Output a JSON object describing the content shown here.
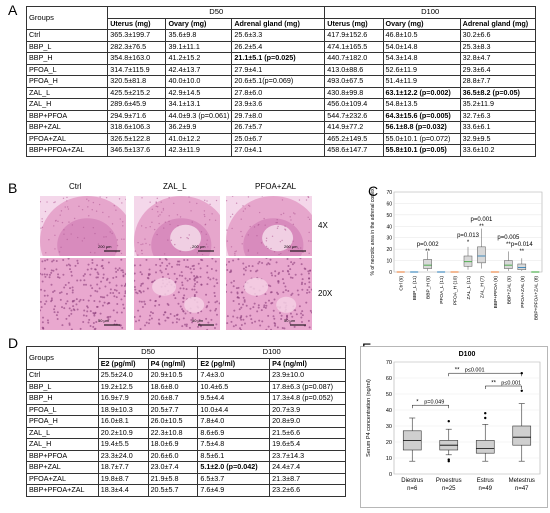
{
  "panels": {
    "A": "A",
    "B": "B",
    "C": "C",
    "D": "D",
    "E": "E"
  },
  "tableA": {
    "col_groups": "Groups",
    "d50": "D50",
    "d100": "D100",
    "sub": [
      "Uterus (mg)",
      "Ovary (mg)",
      "Adrenal gland (mg)",
      "Uterus (mg)",
      "Ovary (mg)",
      "Adrenal gland (mg)"
    ],
    "rows": [
      {
        "g": "Ctrl",
        "c": [
          "365.3±199.7",
          "35.6±9.8",
          "25.6±3.3",
          "417.9±152.6",
          "46.8±10.5",
          "30.2±6.6"
        ],
        "b": []
      },
      {
        "g": "BBP_L",
        "c": [
          "282.3±76.5",
          "39.1±11.1",
          "26.2±5.4",
          "474.1±165.5",
          "54.0±14.8",
          "25.3±8.3"
        ],
        "b": []
      },
      {
        "g": "BBP_H",
        "c": [
          "354.8±163.0",
          "41.2±15.2",
          "21.1±5.1 (p=0.025)",
          "440.7±182.0",
          "54.3±14.8",
          "32.8±4.7"
        ],
        "b": [
          2
        ]
      },
      {
        "g": "PFOA_L",
        "c": [
          "314.7±115.9",
          "42.4±13.7",
          "27.9±4.1",
          "413.0±88.6",
          "52.6±11.9",
          "29.3±6.4"
        ],
        "b": []
      },
      {
        "g": "PFOA_H",
        "c": [
          "320.5±81.8",
          "40.0±10.0",
          "20.6±5.1(p=0.069)",
          "493.0±67.5",
          "51.4±11.9",
          "28.8±7.7"
        ],
        "b": []
      },
      {
        "g": "ZAL_L",
        "c": [
          "425.5±215.2",
          "42.9±14.5",
          "27.8±6.0",
          "430.8±99.8",
          "63.1±12.2 (p=0.002)",
          "36.5±8.2 (p=0.05)"
        ],
        "b": [
          4,
          5
        ]
      },
      {
        "g": "ZAL_H",
        "c": [
          "289.6±45.9",
          "34.1±13.1",
          "23.9±3.6",
          "456.0±109.4",
          "54.8±13.5",
          "35.2±11.9"
        ],
        "b": []
      },
      {
        "g": "BBP+PFOA",
        "c": [
          "294.9±71.6",
          "44.0±9.3 (p=0.061)",
          "29.7±8.0",
          "544.7±232.6",
          "64.3±15.6 (p=0.005)",
          "32.7±6.3"
        ],
        "b": [
          4
        ]
      },
      {
        "g": "BBP+ZAL",
        "c": [
          "318.6±106.3",
          "36.2±9.9",
          "26.7±5.7",
          "414.9±77.2",
          "56.1±8.8 (p=0.032)",
          "33.6±6.1"
        ],
        "b": [
          4
        ]
      },
      {
        "g": "PFOA+ZAL",
        "c": [
          "326.5±122.8",
          "41.0±12.2",
          "25.0±6.7",
          "465.2±149.5",
          "55.0±10.1 (p=0.072)",
          "32.9±9.5"
        ],
        "b": []
      },
      {
        "g": "BBP+PFOA+ZAL",
        "c": [
          "346.5±137.6",
          "42.3±11.9",
          "27.0±4.1",
          "458.6±147.7",
          "55.8±10.1 (p=0.05)",
          "33.6±10.2"
        ],
        "b": [
          4
        ]
      }
    ]
  },
  "panelB": {
    "cols": [
      "Ctrl",
      "ZAL_L",
      "PFOA+ZAL"
    ],
    "rows": [
      "4X",
      "20X"
    ],
    "scale_top": "200 µm",
    "scale_bottom": "50 µm"
  },
  "panelC": {
    "ylabel": "% of necrotic area in the adrenal cortex",
    "ticks": [
      "0",
      "10",
      "20",
      "30",
      "40",
      "50",
      "60",
      "70"
    ],
    "cats": [
      "Ctrl (9)",
      "BBP_L (11)",
      "BBP_H (9)",
      "PFOA_L (11)",
      "PFOA_H (10)",
      "ZAL_L (11)",
      "ZAL_H (7)",
      "BBP+PFOA (9)",
      "BBP+ZAL (9)",
      "PFOA+ZAL (9)",
      "BBP+PFOA+ZAL (8)"
    ],
    "annot": {
      "p1": "p=0.002",
      "p2": "p=0.013",
      "p3": "p=0.001",
      "p4": "p=0.005",
      "p5": "p=0.014",
      "s1": "**",
      "s2": "*",
      "s3": "**",
      "s4": "**",
      "s5": "**"
    }
  },
  "tableD": {
    "col_groups": "Groups",
    "d50": "D50",
    "d100": "D100",
    "sub": [
      "E2 (pg/ml)",
      "P4 (ng/ml)",
      "E2 (pg/ml)",
      "P4 (ng/ml)"
    ],
    "rows": [
      {
        "g": "Ctrl",
        "c": [
          "25.5±24.0",
          "20.9±10.5",
          "7.4±3.0",
          "23.9±10.0"
        ],
        "b": []
      },
      {
        "g": "BBP_L",
        "c": [
          "19.2±12.5",
          "18.6±8.0",
          "10.4±6.5",
          "17.8±6.3 (p=0.087)"
        ],
        "b": []
      },
      {
        "g": "BBP_H",
        "c": [
          "16.9±7.9",
          "20.6±8.7",
          "9.5±4.4",
          "17.3±4.8 (p=0.052)"
        ],
        "b": []
      },
      {
        "g": "PFOA_L",
        "c": [
          "18.9±10.3",
          "20.5±7.7",
          "10.0±4.4",
          "20.7±3.9"
        ],
        "b": []
      },
      {
        "g": "PFOA_H",
        "c": [
          "16.0±8.1",
          "26.0±10.5",
          "7.8±4.0",
          "20.8±9.0"
        ],
        "b": []
      },
      {
        "g": "ZAL_L",
        "c": [
          "20.2±10.9",
          "22.3±10.8",
          "8.6±6.9",
          "21.5±6.6"
        ],
        "b": []
      },
      {
        "g": "ZAL_H",
        "c": [
          "19.4±5.5",
          "18.0±6.9",
          "7.5±4.8",
          "19.6±5.4"
        ],
        "b": []
      },
      {
        "g": "BBP+PFOA",
        "c": [
          "23.3±24.0",
          "20.6±6.0",
          "8.5±6.1",
          "23.7±14.3"
        ],
        "b": []
      },
      {
        "g": "BBP+ZAL",
        "c": [
          "18.7±7.7",
          "23.0±7.4",
          "5.1±2.0 (p=0.042)",
          "24.4±7.4"
        ],
        "b": [
          2
        ]
      },
      {
        "g": "PFOA+ZAL",
        "c": [
          "19.8±8.7",
          "21.9±5.8",
          "6.5±3.7",
          "21.3±8.7"
        ],
        "b": []
      },
      {
        "g": "BBP+PFOA+ZAL",
        "c": [
          "18.3±4.4",
          "20.5±5.7",
          "7.6±4.9",
          "23.2±6.6"
        ],
        "b": []
      }
    ]
  },
  "chart_data": {
    "type": "box",
    "title": "D100",
    "ylabel": "Serum P4 concentration (ng/ml)",
    "ylim": [
      0,
      70
    ],
    "yticks": [
      0,
      10,
      20,
      30,
      40,
      50,
      60,
      70
    ],
    "categories": [
      "Diestrus",
      "Proestrus",
      "Estrus",
      "Metestrus"
    ],
    "n_labels": [
      "n=6",
      "n=25",
      "n=49",
      "n=47"
    ],
    "boxes": [
      {
        "min": 8,
        "q1": 15,
        "median": 21,
        "q3": 27,
        "max": 35,
        "outliers": []
      },
      {
        "min": 12,
        "q1": 15,
        "median": 18,
        "q3": 21,
        "max": 28,
        "outliers": [
          8,
          9,
          33
        ]
      },
      {
        "min": 8,
        "q1": 13,
        "median": 16,
        "q3": 21,
        "max": 31,
        "outliers": [
          35,
          38
        ]
      },
      {
        "min": 8,
        "q1": 18,
        "median": 23,
        "q3": 30,
        "max": 44,
        "outliers": [
          52,
          63
        ]
      }
    ],
    "annotations": [
      {
        "text": "p=0.049",
        "star": "*",
        "from": 0,
        "to": 1
      },
      {
        "text": "p≤0.001",
        "star": "**",
        "from": 1,
        "to": 3
      },
      {
        "text": "p≤0.001",
        "star": "**",
        "from": 2,
        "to": 3
      }
    ]
  }
}
